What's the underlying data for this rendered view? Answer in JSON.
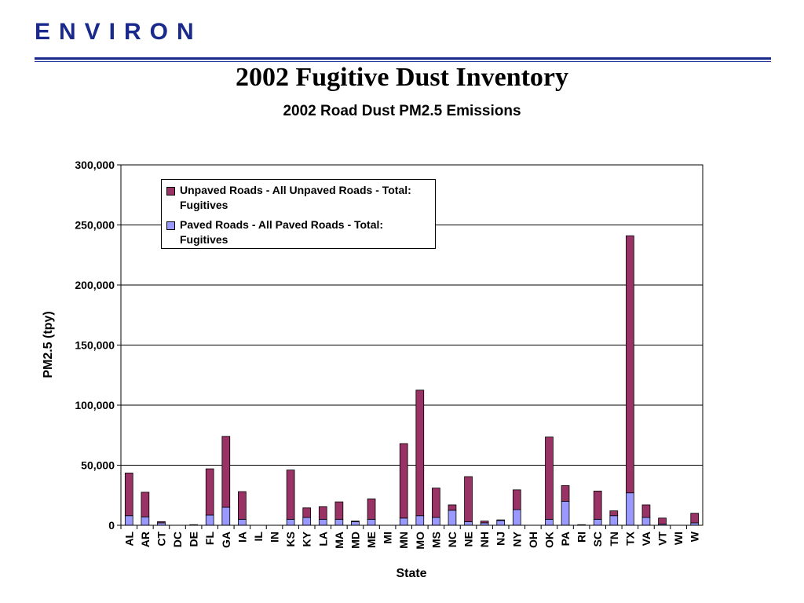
{
  "header": {
    "logo_text": "ENVIRON",
    "title": "2002 Fugitive Dust Inventory"
  },
  "chart_data": {
    "type": "bar",
    "stacked": true,
    "title": "2002 Road Dust PM2.5 Emissions",
    "xlabel": "State",
    "ylabel": "PM2.5 (tpy)",
    "ylim": [
      0,
      300000
    ],
    "yticks": [
      "0",
      "50,000",
      "100,000",
      "150,000",
      "200,000",
      "250,000",
      "300,000"
    ],
    "grid": true,
    "legend_position": "top-left inside plot",
    "categories": [
      "AL",
      "AR",
      "CT",
      "DC",
      "DE",
      "FL",
      "GA",
      "IA",
      "IL",
      "IN",
      "KS",
      "KY",
      "LA",
      "MA",
      "MD",
      "ME",
      "MI",
      "MN",
      "MO",
      "MS",
      "NC",
      "NE",
      "NH",
      "NJ",
      "NY",
      "OH",
      "OK",
      "PA",
      "RI",
      "SC",
      "TN",
      "TX",
      "VA",
      "VT",
      "WI",
      "W"
    ],
    "series": [
      {
        "name": "Paved Roads - All Paved Roads - Total: Fugitives",
        "color": "#9999ff",
        "values": [
          8000,
          7000,
          2000,
          0,
          0,
          8500,
          15000,
          5000,
          0,
          0,
          5000,
          6500,
          5000,
          5000,
          3000,
          5000,
          0,
          6000,
          8000,
          6500,
          12500,
          3000,
          2000,
          4000,
          13000,
          0,
          5000,
          20000,
          0,
          5000,
          8000,
          27000,
          6500,
          1000,
          0,
          2000
        ]
      },
      {
        "name": "Unpaved Roads - All Unpaved Roads - Total: Fugitives",
        "color": "#993366",
        "values": [
          35500,
          20500,
          1000,
          0,
          500,
          38500,
          59000,
          23000,
          0,
          0,
          41000,
          8000,
          10500,
          14500,
          500,
          17000,
          0,
          62000,
          104500,
          24500,
          4500,
          37500,
          1500,
          500,
          16500,
          0,
          68500,
          13000,
          500,
          23500,
          4000,
          214000,
          10500,
          5000,
          0,
          8000
        ]
      }
    ]
  }
}
